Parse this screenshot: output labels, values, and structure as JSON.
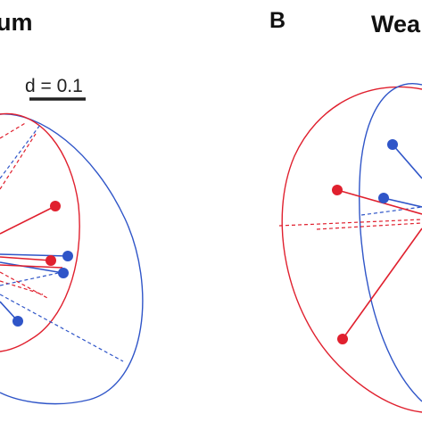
{
  "panel_a": {
    "title_fragment": "um"
  },
  "panel_b": {
    "letter": "B",
    "title_fragment": "Wea"
  },
  "scale_bar": {
    "label": "d = 0.1"
  },
  "colors": {
    "red": "#e0202e",
    "blue": "#2f55c8",
    "black": "#222222"
  }
}
